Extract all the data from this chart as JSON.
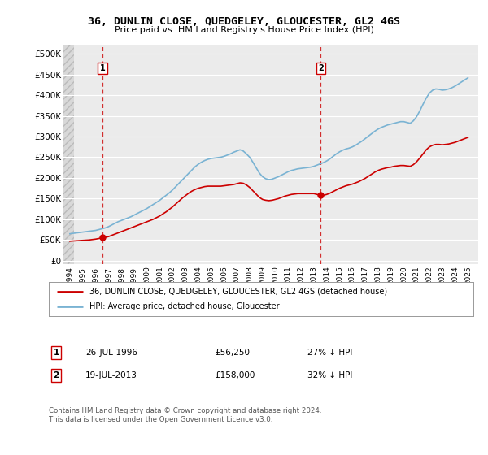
{
  "title": "36, DUNLIN CLOSE, QUEDGELEY, GLOUCESTER, GL2 4GS",
  "subtitle": "Price paid vs. HM Land Registry's House Price Index (HPI)",
  "ylabel_ticks": [
    0,
    50000,
    100000,
    150000,
    200000,
    250000,
    300000,
    350000,
    400000,
    450000,
    500000
  ],
  "ylabel_labels": [
    "£0",
    "£50K",
    "£100K",
    "£150K",
    "£200K",
    "£250K",
    "£300K",
    "£350K",
    "£400K",
    "£450K",
    "£500K"
  ],
  "xlim": [
    1993.5,
    2025.8
  ],
  "ylim": [
    -8000,
    520000
  ],
  "xticks": [
    1994,
    1995,
    1996,
    1997,
    1998,
    1999,
    2000,
    2001,
    2002,
    2003,
    2004,
    2005,
    2006,
    2007,
    2008,
    2009,
    2010,
    2011,
    2012,
    2013,
    2014,
    2015,
    2016,
    2017,
    2018,
    2019,
    2020,
    2021,
    2022,
    2023,
    2024,
    2025
  ],
  "hpi_color": "#7ab3d3",
  "property_color": "#cc0000",
  "sale1_year": 1996.55,
  "sale1_price": 56250,
  "sale2_year": 2013.54,
  "sale2_price": 158000,
  "legend_property": "36, DUNLIN CLOSE, QUEDGELEY, GLOUCESTER, GL2 4GS (detached house)",
  "legend_hpi": "HPI: Average price, detached house, Gloucester",
  "annotation1_label": "1",
  "annotation1_date": "26-JUL-1996",
  "annotation1_price": "£56,250",
  "annotation1_pct": "27% ↓ HPI",
  "annotation2_label": "2",
  "annotation2_date": "19-JUL-2013",
  "annotation2_price": "£158,000",
  "annotation2_pct": "32% ↓ HPI",
  "footer": "Contains HM Land Registry data © Crown copyright and database right 2024.\nThis data is licensed under the Open Government Licence v3.0.",
  "hpi_x": [
    1994.0,
    1994.25,
    1994.5,
    1994.75,
    1995.0,
    1995.25,
    1995.5,
    1995.75,
    1996.0,
    1996.25,
    1996.5,
    1996.75,
    1997.0,
    1997.25,
    1997.5,
    1997.75,
    1998.0,
    1998.25,
    1998.5,
    1998.75,
    1999.0,
    1999.25,
    1999.5,
    1999.75,
    2000.0,
    2000.25,
    2000.5,
    2000.75,
    2001.0,
    2001.25,
    2001.5,
    2001.75,
    2002.0,
    2002.25,
    2002.5,
    2002.75,
    2003.0,
    2003.25,
    2003.5,
    2003.75,
    2004.0,
    2004.25,
    2004.5,
    2004.75,
    2005.0,
    2005.25,
    2005.5,
    2005.75,
    2006.0,
    2006.25,
    2006.5,
    2006.75,
    2007.0,
    2007.25,
    2007.5,
    2007.75,
    2008.0,
    2008.25,
    2008.5,
    2008.75,
    2009.0,
    2009.25,
    2009.5,
    2009.75,
    2010.0,
    2010.25,
    2010.5,
    2010.75,
    2011.0,
    2011.25,
    2011.5,
    2011.75,
    2012.0,
    2012.25,
    2012.5,
    2012.75,
    2013.0,
    2013.25,
    2013.5,
    2013.75,
    2014.0,
    2014.25,
    2014.5,
    2014.75,
    2015.0,
    2015.25,
    2015.5,
    2015.75,
    2016.0,
    2016.25,
    2016.5,
    2016.75,
    2017.0,
    2017.25,
    2017.5,
    2017.75,
    2018.0,
    2018.25,
    2018.5,
    2018.75,
    2019.0,
    2019.25,
    2019.5,
    2019.75,
    2020.0,
    2020.25,
    2020.5,
    2020.75,
    2021.0,
    2021.25,
    2021.5,
    2021.75,
    2022.0,
    2022.25,
    2022.5,
    2022.75,
    2023.0,
    2023.25,
    2023.5,
    2023.75,
    2024.0,
    2024.25,
    2024.5,
    2024.75,
    2025.0
  ],
  "hpi_y": [
    65000,
    66000,
    67000,
    68000,
    69000,
    70000,
    71000,
    72000,
    73000,
    75000,
    77000,
    79000,
    82000,
    86000,
    90000,
    94000,
    97000,
    100000,
    103000,
    106000,
    110000,
    114000,
    118000,
    122000,
    126000,
    131000,
    136000,
    141000,
    146000,
    152000,
    158000,
    164000,
    171000,
    179000,
    187000,
    195000,
    203000,
    211000,
    219000,
    227000,
    233000,
    238000,
    242000,
    245000,
    247000,
    248000,
    249000,
    250000,
    252000,
    255000,
    258000,
    262000,
    265000,
    268000,
    265000,
    258000,
    250000,
    238000,
    225000,
    212000,
    203000,
    198000,
    196000,
    197000,
    200000,
    203000,
    207000,
    211000,
    215000,
    218000,
    220000,
    222000,
    223000,
    224000,
    225000,
    226000,
    228000,
    231000,
    234000,
    237000,
    241000,
    246000,
    252000,
    258000,
    263000,
    267000,
    270000,
    272000,
    275000,
    279000,
    284000,
    289000,
    295000,
    301000,
    307000,
    313000,
    318000,
    322000,
    325000,
    328000,
    330000,
    332000,
    334000,
    336000,
    336000,
    334000,
    332000,
    338000,
    348000,
    362000,
    378000,
    393000,
    405000,
    412000,
    415000,
    414000,
    412000,
    413000,
    415000,
    418000,
    422000,
    427000,
    432000,
    437000,
    442000
  ],
  "prop_x": [
    1994.0,
    1994.25,
    1994.5,
    1994.75,
    1995.0,
    1995.25,
    1995.5,
    1995.75,
    1996.0,
    1996.25,
    1996.5,
    1996.75,
    1997.0,
    1997.25,
    1997.5,
    1997.75,
    1998.0,
    1998.25,
    1998.5,
    1998.75,
    1999.0,
    1999.25,
    1999.5,
    1999.75,
    2000.0,
    2000.25,
    2000.5,
    2000.75,
    2001.0,
    2001.25,
    2001.5,
    2001.75,
    2002.0,
    2002.25,
    2002.5,
    2002.75,
    2003.0,
    2003.25,
    2003.5,
    2003.75,
    2004.0,
    2004.25,
    2004.5,
    2004.75,
    2005.0,
    2005.25,
    2005.5,
    2005.75,
    2006.0,
    2006.25,
    2006.5,
    2006.75,
    2007.0,
    2007.25,
    2007.5,
    2007.75,
    2008.0,
    2008.25,
    2008.5,
    2008.75,
    2009.0,
    2009.25,
    2009.5,
    2009.75,
    2010.0,
    2010.25,
    2010.5,
    2010.75,
    2011.0,
    2011.25,
    2011.5,
    2011.75,
    2012.0,
    2012.25,
    2012.5,
    2012.75,
    2013.0,
    2013.25,
    2013.5,
    2013.75,
    2014.0,
    2014.25,
    2014.5,
    2014.75,
    2015.0,
    2015.25,
    2015.5,
    2015.75,
    2016.0,
    2016.25,
    2016.5,
    2016.75,
    2017.0,
    2017.25,
    2017.5,
    2017.75,
    2018.0,
    2018.25,
    2018.5,
    2018.75,
    2019.0,
    2019.25,
    2019.5,
    2019.75,
    2020.0,
    2020.25,
    2020.5,
    2020.75,
    2021.0,
    2021.25,
    2021.5,
    2021.75,
    2022.0,
    2022.25,
    2022.5,
    2022.75,
    2023.0,
    2023.25,
    2023.5,
    2023.75,
    2024.0,
    2024.25,
    2024.5,
    2024.75,
    2025.0
  ],
  "prop_y": [
    47000,
    47500,
    48000,
    48500,
    49000,
    49500,
    50000,
    51000,
    52000,
    53500,
    55000,
    56250,
    58000,
    61000,
    64000,
    67000,
    70000,
    73000,
    76000,
    79000,
    82000,
    85000,
    88000,
    91000,
    94000,
    97000,
    100000,
    104000,
    108000,
    113000,
    118000,
    124000,
    130000,
    137000,
    144000,
    151000,
    157000,
    163000,
    168000,
    172000,
    175000,
    177000,
    179000,
    180000,
    180000,
    180000,
    180000,
    180000,
    181000,
    182000,
    183000,
    184000,
    186000,
    188000,
    187000,
    183000,
    177000,
    169000,
    161000,
    153000,
    148000,
    146000,
    145000,
    146000,
    148000,
    150000,
    153000,
    156000,
    158000,
    160000,
    161000,
    162000,
    162000,
    162000,
    162000,
    162000,
    162000,
    160000,
    158000,
    158000,
    160000,
    163000,
    167000,
    171000,
    175000,
    178000,
    181000,
    183000,
    185000,
    188000,
    191000,
    195000,
    199000,
    204000,
    209000,
    214000,
    218000,
    221000,
    223000,
    225000,
    226000,
    228000,
    229000,
    230000,
    230000,
    229000,
    228000,
    232000,
    239000,
    248000,
    258000,
    268000,
    275000,
    279000,
    281000,
    281000,
    280000,
    281000,
    282000,
    284000,
    286000,
    289000,
    292000,
    295000,
    298000
  ],
  "hatch_x_end": 1994.0,
  "plot_bg": "#ebebeb",
  "hatch_color": "#d8d8d8",
  "grid_color": "#ffffff"
}
